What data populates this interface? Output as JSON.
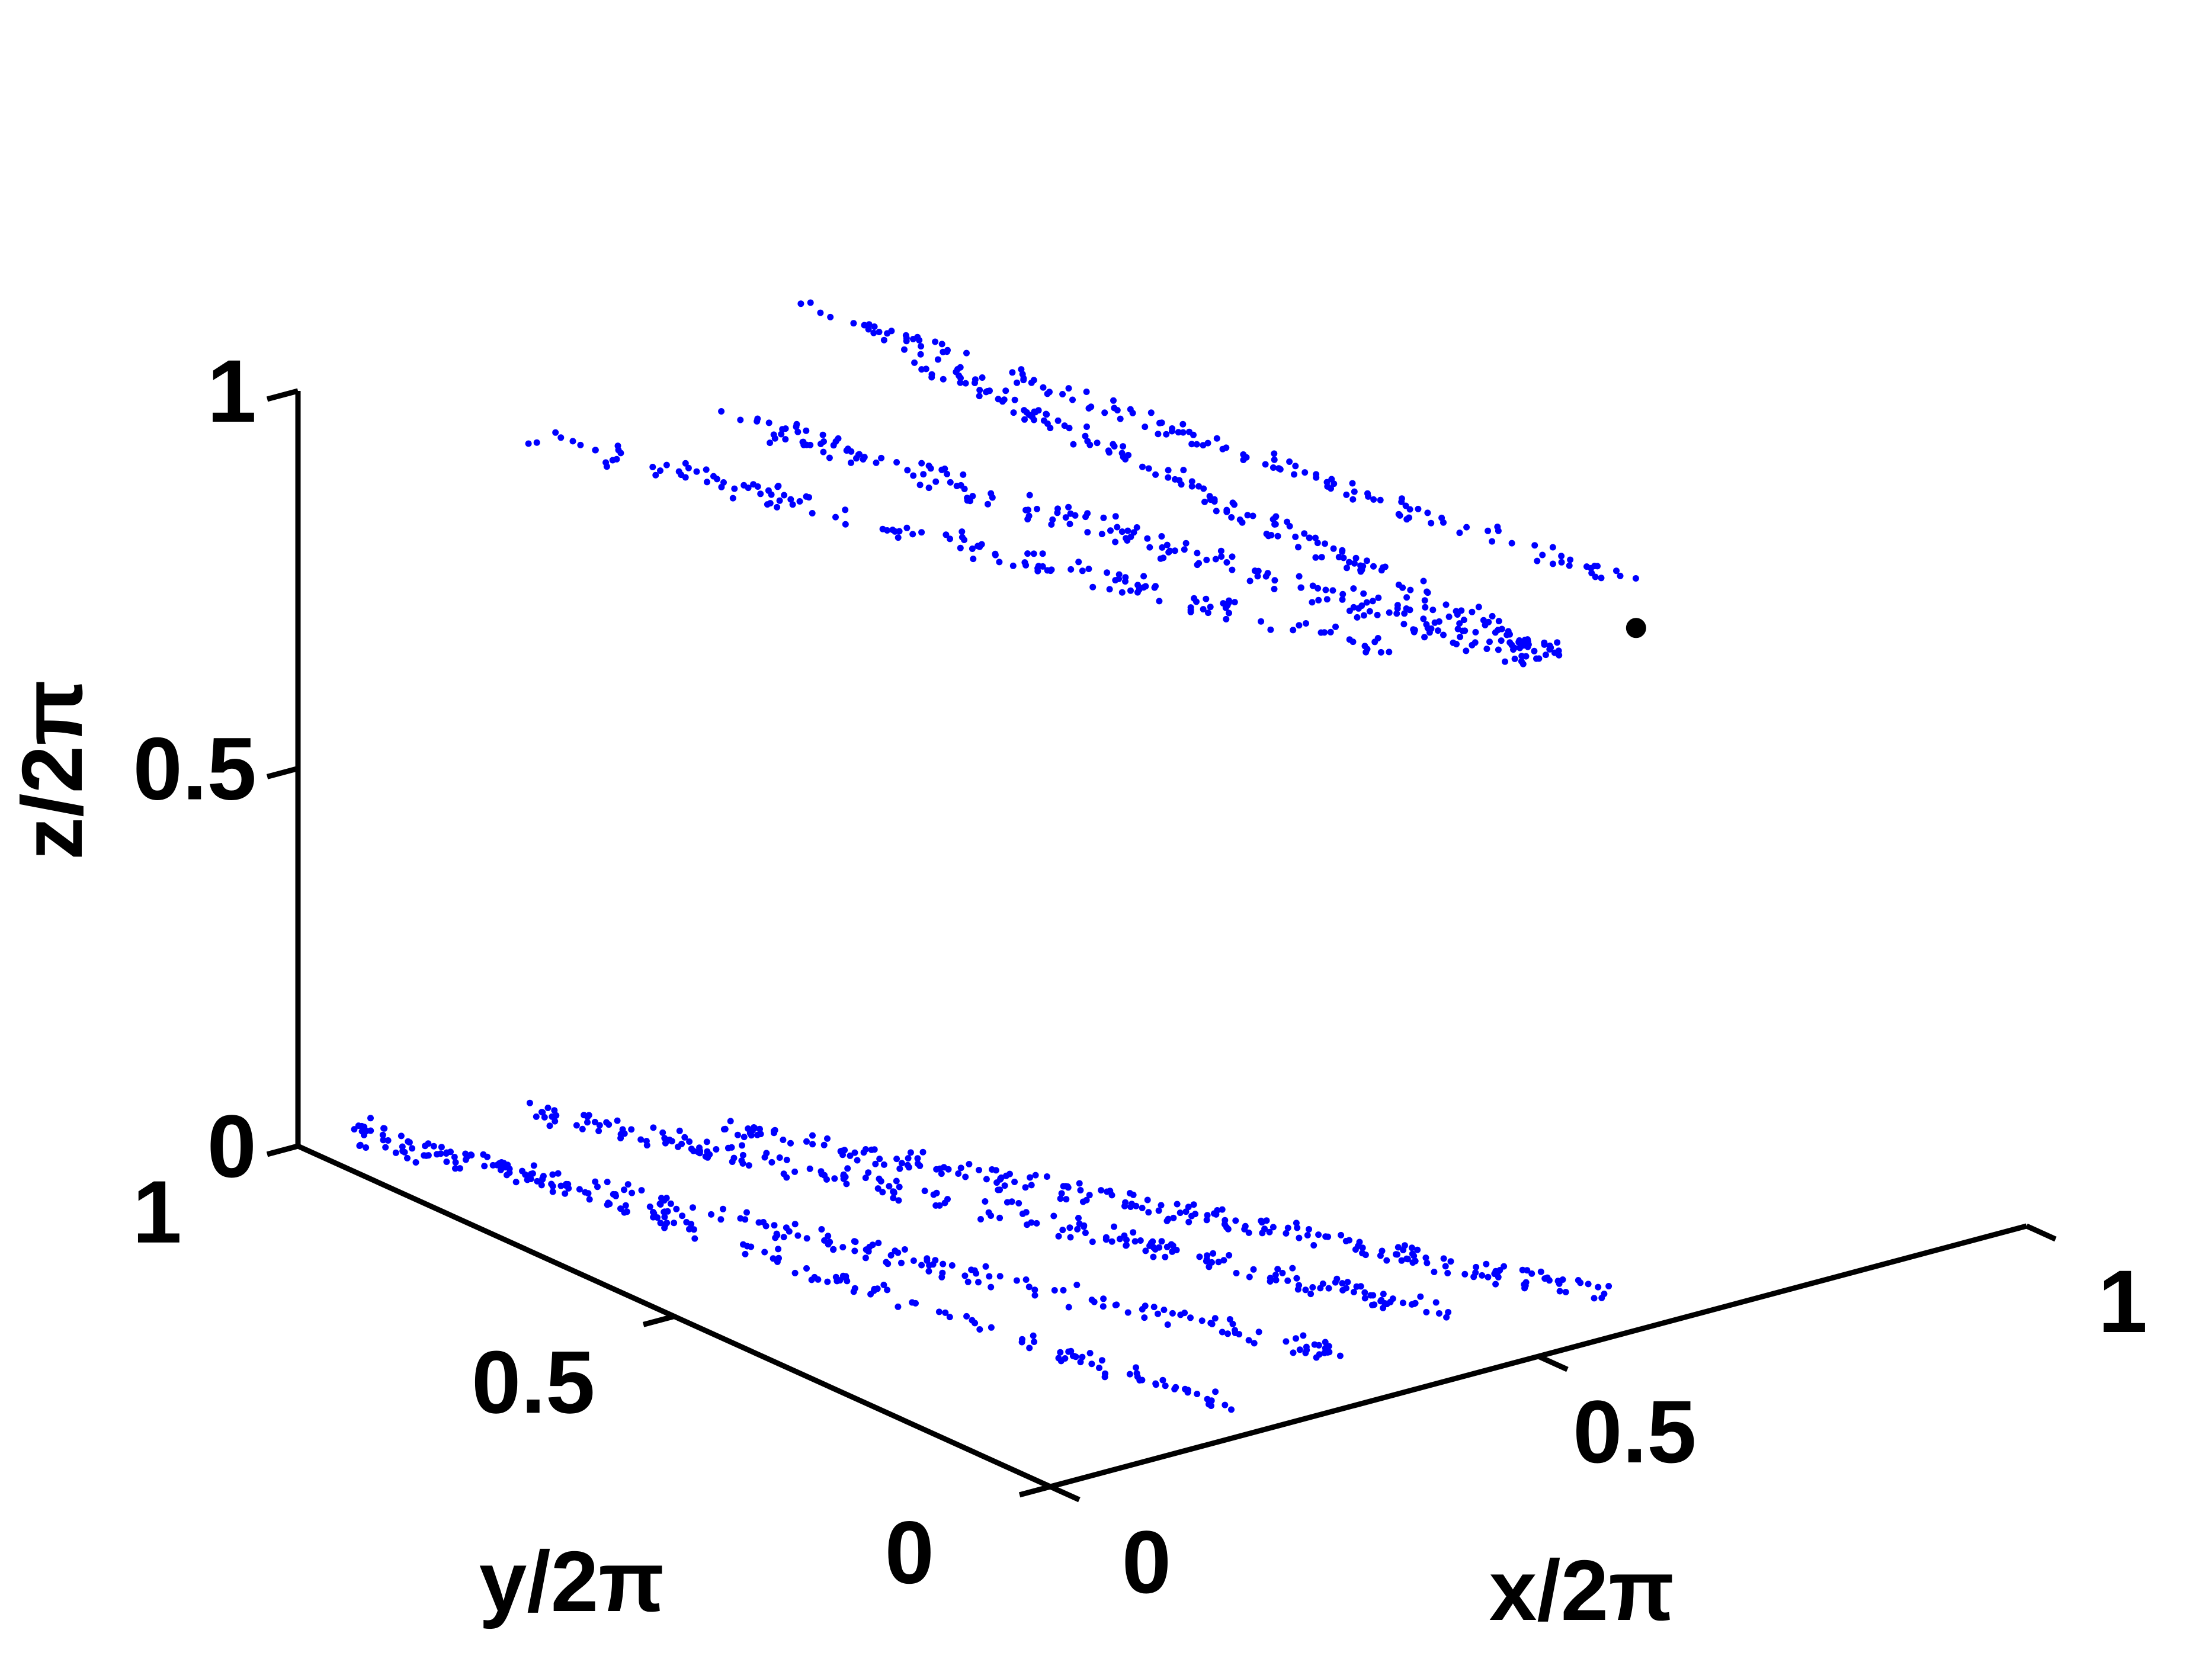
{
  "chart_data": {
    "type": "scatter",
    "projection": "3d",
    "colors": {
      "points": "#0000ff",
      "marker": "#000000",
      "axes": "#000000",
      "background": "#ffffff"
    },
    "axes": {
      "x": {
        "label": "x/2π",
        "range": [
          0,
          1
        ],
        "ticks": [
          0,
          0.5,
          1
        ],
        "tick_labels": [
          "0",
          "0.5",
          "1"
        ]
      },
      "y": {
        "label": "y/2π",
        "range": [
          0,
          1
        ],
        "ticks": [
          0,
          0.5,
          1
        ],
        "tick_labels": [
          "0",
          "0.5",
          "1"
        ]
      },
      "z": {
        "label": "z/2π",
        "range": [
          0,
          1
        ],
        "ticks": [
          0,
          0.5,
          1
        ],
        "tick_labels": [
          "0",
          "0.5",
          "1"
        ]
      }
    },
    "grid": false,
    "legend": "none",
    "series": [
      {
        "segments": [
          {
            "start": [
              0.17,
              0.92,
              0.92
            ],
            "end": [
              0.4,
              0.06,
              0.94
            ],
            "count": 150,
            "spread": 0.011
          },
          {
            "start": [
              0.53,
              0.86,
              0.92
            ],
            "end": [
              0.53,
              0.0,
              0.91
            ],
            "count": 180,
            "spread": 0.011
          },
          {
            "start": [
              0.5,
              0.99,
              0.95
            ],
            "end": [
              0.64,
              0.05,
              0.95
            ],
            "count": 140,
            "spread": 0.009
          },
          {
            "start": [
              0.37,
              0.9,
              0.88
            ],
            "end": [
              0.55,
              0.05,
              0.88
            ],
            "count": 200,
            "spread": 0.013
          },
          {
            "start": [
              0.02,
              0.94,
              0.03
            ],
            "end": [
              0.35,
              0.04,
              0.03
            ],
            "count": 200,
            "spread": 0.011
          },
          {
            "start": [
              0.15,
              0.88,
              0.05
            ],
            "end": [
              0.45,
              0.06,
              0.05
            ],
            "count": 220,
            "spread": 0.011
          },
          {
            "start": [
              0.28,
              0.8,
              0.02
            ],
            "end": [
              0.62,
              0.04,
              0.02
            ],
            "count": 220,
            "spread": 0.011
          },
          {
            "start": [
              0.06,
              1.0,
              0.01
            ],
            "end": [
              0.22,
              0.04,
              0.01
            ],
            "count": 150,
            "spread": 0.009
          }
        ]
      }
    ],
    "highlight_point": {
      "x": 0.6,
      "y": 0.0,
      "z": 0.93
    }
  }
}
